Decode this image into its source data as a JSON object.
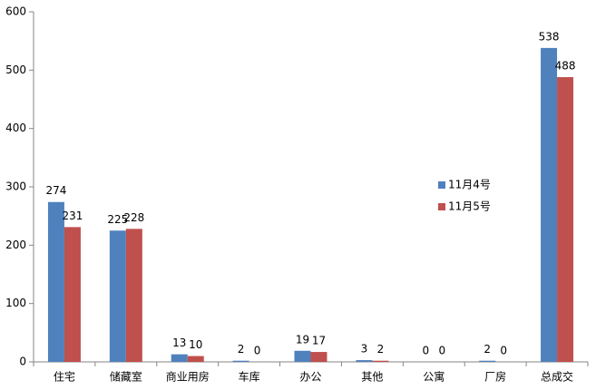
{
  "chart_data": {
    "type": "bar",
    "categories": [
      "住宅",
      "储藏室",
      "商业用房",
      "车库",
      "办公",
      "其他",
      "公寓",
      "厂房",
      "总成交"
    ],
    "series": [
      {
        "name": "11月4号",
        "color": "#4f81bd",
        "values": [
          274,
          225,
          13,
          2,
          19,
          3,
          0,
          2,
          538
        ]
      },
      {
        "name": "11月5号",
        "color": "#c0504d",
        "values": [
          231,
          228,
          10,
          0,
          17,
          2,
          0,
          0,
          488
        ]
      }
    ],
    "ylim": [
      0,
      600
    ],
    "yticks": [
      0,
      100,
      200,
      300,
      400,
      500,
      600
    ],
    "grid": false,
    "legend": "right"
  }
}
